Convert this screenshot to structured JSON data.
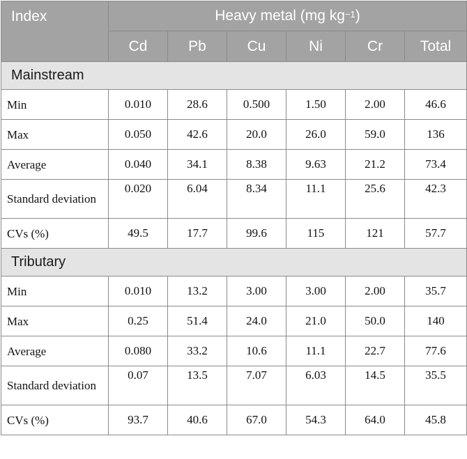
{
  "header": {
    "index_label": "Index",
    "group_label": "Heavy metal (mg kg",
    "group_label_exp": "−1",
    "group_label_close": ")",
    "columns": [
      "Cd",
      "Pb",
      "Cu",
      "Ni",
      "Cr",
      "Total"
    ]
  },
  "sections": [
    {
      "title": "Mainstream",
      "rows": [
        {
          "label": "Min",
          "values": [
            "0.010",
            "28.6",
            "0.500",
            "1.50",
            "2.00",
            "46.6"
          ]
        },
        {
          "label": "Max",
          "values": [
            "0.050",
            "42.6",
            "20.0",
            "26.0",
            "59.0",
            "136"
          ]
        },
        {
          "label": "Average",
          "values": [
            "0.040",
            "34.1",
            "8.38",
            "9.63",
            "21.2",
            "73.4"
          ]
        },
        {
          "label": "Standard deviation",
          "values": [
            "0.020",
            "6.04",
            "8.34",
            "11.1",
            "25.6",
            "42.3"
          ]
        },
        {
          "label": "CVs (%)",
          "values": [
            "49.5",
            "17.7",
            "99.6",
            "115",
            "121",
            "57.7"
          ]
        }
      ]
    },
    {
      "title": "Tributary",
      "rows": [
        {
          "label": "Min",
          "values": [
            "0.010",
            "13.2",
            "3.00",
            "3.00",
            "2.00",
            "35.7"
          ]
        },
        {
          "label": "Max",
          "values": [
            "0.25",
            "51.4",
            "24.0",
            "21.0",
            "50.0",
            "140"
          ]
        },
        {
          "label": "Average",
          "values": [
            "0.080",
            "33.2",
            "10.6",
            "11.1",
            "22.7",
            "77.6"
          ]
        },
        {
          "label": "Standard deviation",
          "values": [
            "0.07",
            "13.5",
            "7.07",
            "6.03",
            "14.5",
            "35.5"
          ]
        },
        {
          "label": "CVs (%)",
          "values": [
            "93.7",
            "40.6",
            "67.0",
            "54.3",
            "64.0",
            "45.8"
          ]
        }
      ]
    }
  ]
}
